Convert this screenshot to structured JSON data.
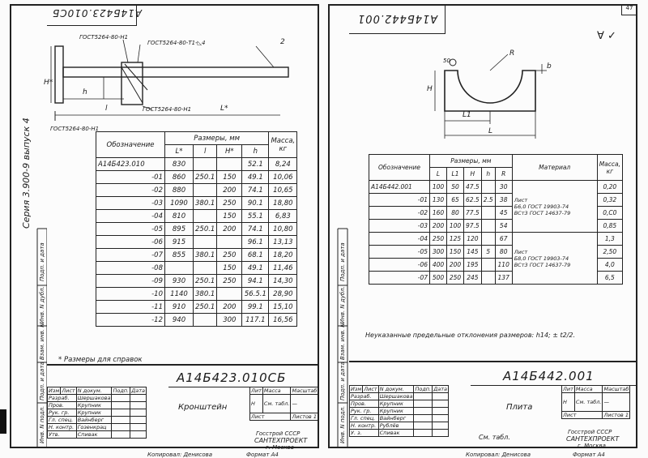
{
  "left": {
    "stamp_code": "А14Б423.010СБ",
    "series_vertical": "Серия 3.900-9 выпуск 4",
    "gost_labels": [
      "ГОСТ5264-80-Н1",
      "ГОСТ5264-80-Т1-◺4",
      "ГОСТ5264-80-Н1",
      "ГОСТ5264-80-Н1"
    ],
    "dims": {
      "H": "H*",
      "h": "h",
      "l": "l",
      "L": "L*",
      "pos2": "2"
    },
    "table": {
      "col_designation": "Обозначение",
      "col_sizes": "Размеры, мм",
      "col_mass": "Масса, кг",
      "sub_headers": [
        "L*",
        "l",
        "H*",
        "h"
      ],
      "rows": [
        {
          "d": "А14Б423.010",
          "L": "830",
          "l": "",
          "H": "",
          "h": "52.1",
          "m": "8,24"
        },
        {
          "d": "-01",
          "L": "860",
          "l": "250.1",
          "H": "150",
          "h": "49.1",
          "m": "10,06"
        },
        {
          "d": "-02",
          "L": "880",
          "l": "",
          "H": "200",
          "h": "74.1",
          "m": "10,65"
        },
        {
          "d": "-03",
          "L": "1090",
          "l": "380.1",
          "H": "250",
          "h": "90.1",
          "m": "18,80"
        },
        {
          "d": "-04",
          "L": "810",
          "l": "",
          "H": "150",
          "h": "55.1",
          "m": "6,83"
        },
        {
          "d": "-05",
          "L": "895",
          "l": "250.1",
          "H": "200",
          "h": "74.1",
          "m": "10,80"
        },
        {
          "d": "-06",
          "L": "915",
          "l": "",
          "H": "",
          "h": "96.1",
          "m": "13,13"
        },
        {
          "d": "-07",
          "L": "855",
          "l": "380.1",
          "H": "250",
          "h": "68.1",
          "m": "18,20"
        },
        {
          "d": "-08",
          "L": "",
          "l": "",
          "H": "150",
          "h": "49.1",
          "m": "11,46"
        },
        {
          "d": "-09",
          "L": "930",
          "l": "250.1",
          "H": "250",
          "h": "94.1",
          "m": "14,30"
        },
        {
          "d": "-10",
          "L": "1140",
          "l": "380.1",
          "H": "",
          "h": "56.5.1",
          "m": "28,90"
        },
        {
          "d": "-11",
          "L": "910",
          "l": "250.1",
          "H": "200",
          "h": "99.1",
          "m": "15,10"
        },
        {
          "d": "-12",
          "L": "940",
          "l": "",
          "H": "300",
          "h": "117.1",
          "m": "16,56"
        }
      ]
    },
    "note": "* Размеры для справок",
    "title_block": {
      "code": "А14Б423.010СБ",
      "name": "Кронштейн",
      "lit": "Лит",
      "mass": "Масса",
      "scale": "Масштаб",
      "mass_val": "См. табл.",
      "lit_val": "Н",
      "scale_val": "—",
      "sheet": "Лист",
      "sheets": "Листов 1",
      "org1": "Госстрой СССР",
      "org2": "САНТЕХПРОЕКТ",
      "org3": "г. Москва",
      "hdr": [
        "Изм",
        "Лист",
        "N докум.",
        "Подп.",
        "Дата"
      ],
      "roles": [
        {
          "role": "Разраб.",
          "name": "Шершакова"
        },
        {
          "role": "Пров.",
          "name": "Крупник"
        },
        {
          "role": "Рук. гр.",
          "name": "Крупник"
        },
        {
          "role": "Гл. спец.",
          "name": "Вайнберг"
        },
        {
          "role": "Н. контр.",
          "name": "Гозенкрац"
        },
        {
          "role": "Утв.",
          "name": "Спивак"
        }
      ],
      "copied": "Копировал: Денисова",
      "format": "Формат А4"
    },
    "side_labels": [
      "Перв. примен.",
      "Справ. N",
      "Подп. и дата",
      "Инв. N дубл.",
      "Взам. инв. N",
      "Подп. и дата",
      "Инв. N подл."
    ]
  },
  "right": {
    "page_no": "47",
    "stamp_code": "А14Б442.001",
    "roughness": "∀ ✓",
    "dims": {
      "weld": "50",
      "R": "R",
      "b": "b",
      "H": "H",
      "L1": "L1",
      "L": "L"
    },
    "table": {
      "col_designation": "Обозначение",
      "col_sizes": "Размеры, мм",
      "col_material": "Материал",
      "col_mass": "Масса, кг",
      "sub_headers": [
        "L",
        "L1",
        "H",
        "h",
        "R"
      ],
      "rows": [
        {
          "d": "А14Б442.001",
          "L": "100",
          "L1": "50",
          "H": "47.5",
          "h": "",
          "R": "30",
          "m": "0,20"
        },
        {
          "d": "-01",
          "L": "130",
          "L1": "65",
          "H": "62.5",
          "h": "2.5",
          "R": "38",
          "m": "0,32"
        },
        {
          "d": "-02",
          "L": "160",
          "L1": "80",
          "H": "77.5",
          "h": "",
          "R": "45",
          "m": "0,C0"
        },
        {
          "d": "-03",
          "L": "200",
          "L1": "100",
          "H": "97.5",
          "h": "",
          "R": "54",
          "m": "0,85"
        },
        {
          "d": "-04",
          "L": "250",
          "L1": "125",
          "H": "120",
          "h": "",
          "R": "67",
          "m": "1,3"
        },
        {
          "d": "-05",
          "L": "300",
          "L1": "150",
          "H": "145",
          "h": "5",
          "R": "80",
          "m": "2,50"
        },
        {
          "d": "-06",
          "L": "400",
          "L1": "200",
          "H": "195",
          "h": "",
          "R": "110",
          "m": "4,0"
        },
        {
          "d": "-07",
          "L": "500",
          "L1": "250",
          "H": "245",
          "h": "",
          "R": "137",
          "m": "6,5"
        }
      ],
      "material_1": [
        "Лист",
        "Б6,0 ГОСТ 19903-74",
        "ВСт3 ГОСТ 14637-79"
      ],
      "material_2": [
        "Лист",
        "Б8,0 ГОСТ 19903-74",
        "ВСт3 ГОСТ 14637-79"
      ]
    },
    "tolerance_note": "Неуказанные предельные отклонения размеров: h14; ± t2/2.",
    "title_block": {
      "code": "А14Б442.001",
      "name": "Плита",
      "material": "См. табл.",
      "lit": "Лит",
      "mass": "Масса",
      "scale": "Масштаб",
      "mass_val": "См. табл.",
      "lit_val": "Н",
      "scale_val": "—",
      "sheet": "Лист",
      "sheets": "Листов 1",
      "org1": "Госстрой СССР",
      "org2": "САНТЕХПРОЕКТ",
      "org3": "г. Москва",
      "hdr": [
        "Изм",
        "Лист",
        "N докум.",
        "Подп.",
        "Дата"
      ],
      "roles": [
        {
          "role": "Разраб.",
          "name": "Шершакова"
        },
        {
          "role": "Пров.",
          "name": "Крупник"
        },
        {
          "role": "Рук. гр.",
          "name": "Крупник"
        },
        {
          "role": "Гл. спец.",
          "name": "Вайнберг"
        },
        {
          "role": "Н. контр.",
          "name": "Рублёв"
        },
        {
          "role": "У. з.",
          "name": "Спивак"
        }
      ],
      "copied": "Копировал: Денисова",
      "format": "Формат А4"
    },
    "side_labels": [
      "Подп. и дата",
      "Инв. N дубл.",
      "Взам. инв. N",
      "Подп. и дата",
      "Инв. N подл."
    ]
  }
}
